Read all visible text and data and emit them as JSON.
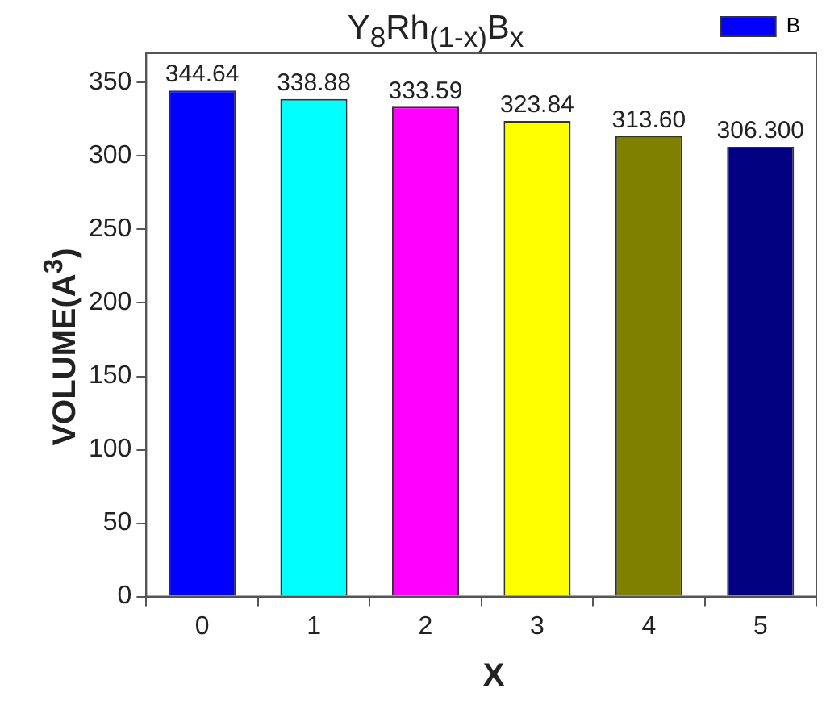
{
  "chart_data": {
    "type": "bar",
    "title": "Y$_{8}$Rh$_{(1-x)}$B$_{x}$",
    "xlabel": "X",
    "ylabel": "VOLUME(A$^{3}$)",
    "categories": [
      "0",
      "1",
      "2",
      "3",
      "4",
      "5"
    ],
    "series": [
      {
        "name": "B",
        "color": "#0000ff",
        "colors": [
          "#0000ff",
          "#00ffff",
          "#ff00ff",
          "#ffff00",
          "#808000",
          "#000080"
        ],
        "values": [
          344.64,
          338.88,
          333.59,
          323.84,
          313.6,
          306.3
        ],
        "value_labels": [
          "344.64",
          "338.88",
          "333.59",
          "323.84",
          "313.60",
          "306.300"
        ]
      }
    ],
    "ylim": [
      0,
      370
    ],
    "yticks": [
      0,
      50,
      100,
      150,
      200,
      250,
      300,
      350
    ],
    "legend": "top right",
    "grid": false
  }
}
